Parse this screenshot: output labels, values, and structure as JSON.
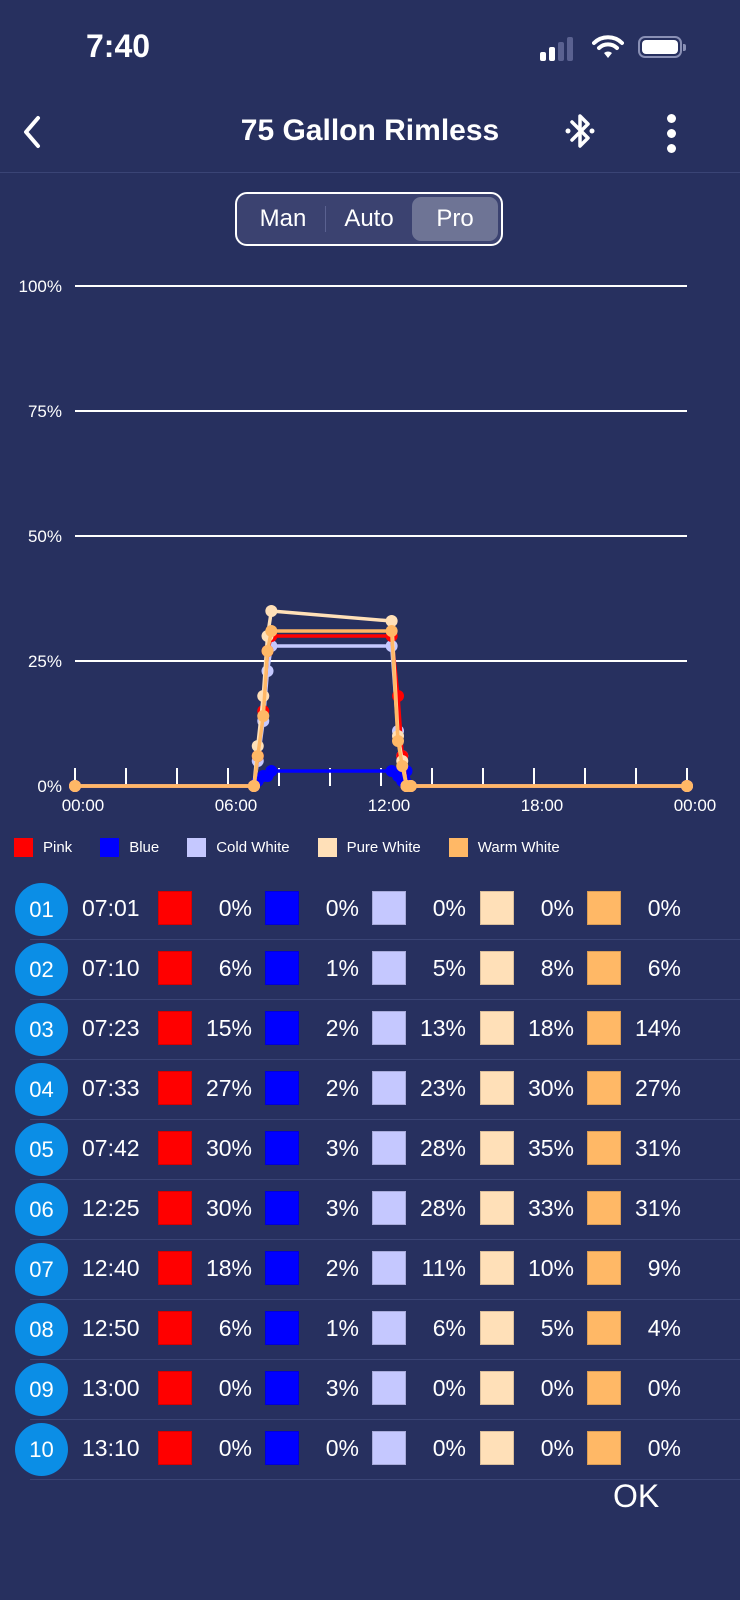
{
  "status_bar": {
    "time": "7:40"
  },
  "header": {
    "title": "75 Gallon Rimless",
    "back_icon": "chevron-left-icon",
    "bluetooth_icon": "bluetooth-icon",
    "menu_icon": "more-vertical-icon"
  },
  "mode_tabs": [
    {
      "label": "Man",
      "active": false
    },
    {
      "label": "Auto",
      "active": false
    },
    {
      "label": "Pro",
      "active": true
    }
  ],
  "channels": [
    {
      "name": "Pink",
      "color": "#ff0000"
    },
    {
      "name": "Blue",
      "color": "#0000ff"
    },
    {
      "name": "Cold White",
      "color": "#c5c8ff"
    },
    {
      "name": "Pure White",
      "color": "#ffe0b8"
    },
    {
      "name": "Warm White",
      "color": "#ffb866"
    }
  ],
  "schedule": [
    {
      "id": "01",
      "time": "07:01",
      "values": [
        "0%",
        "0%",
        "0%",
        "0%",
        "0%"
      ]
    },
    {
      "id": "02",
      "time": "07:10",
      "values": [
        "6%",
        "1%",
        "5%",
        "8%",
        "6%"
      ]
    },
    {
      "id": "03",
      "time": "07:23",
      "values": [
        "15%",
        "2%",
        "13%",
        "18%",
        "14%"
      ]
    },
    {
      "id": "04",
      "time": "07:33",
      "values": [
        "27%",
        "2%",
        "23%",
        "30%",
        "27%"
      ]
    },
    {
      "id": "05",
      "time": "07:42",
      "values": [
        "30%",
        "3%",
        "28%",
        "35%",
        "31%"
      ]
    },
    {
      "id": "06",
      "time": "12:25",
      "values": [
        "30%",
        "3%",
        "28%",
        "33%",
        "31%"
      ]
    },
    {
      "id": "07",
      "time": "12:40",
      "values": [
        "18%",
        "2%",
        "11%",
        "10%",
        "9%"
      ]
    },
    {
      "id": "08",
      "time": "12:50",
      "values": [
        "6%",
        "1%",
        "6%",
        "5%",
        "4%"
      ]
    },
    {
      "id": "09",
      "time": "13:00",
      "values": [
        "0%",
        "3%",
        "0%",
        "0%",
        "0%"
      ]
    },
    {
      "id": "10",
      "time": "13:10",
      "values": [
        "0%",
        "0%",
        "0%",
        "0%",
        "0%"
      ]
    }
  ],
  "chart_data": {
    "type": "line",
    "title": "",
    "xlabel": "",
    "ylabel": "",
    "x_ticks": [
      "00:00",
      "06:00",
      "12:00",
      "18:00",
      "00:00"
    ],
    "y_ticks": [
      "0%",
      "25%",
      "50%",
      "75%",
      "100%"
    ],
    "ylim": [
      0,
      100
    ],
    "xlim_hours": [
      0,
      24
    ],
    "grid": true,
    "legend": "bottom",
    "x_hours": [
      0,
      7.017,
      7.167,
      7.383,
      7.55,
      7.7,
      12.417,
      12.667,
      12.833,
      13.0,
      13.167,
      24
    ],
    "series": [
      {
        "name": "Pink",
        "values": [
          0,
          0,
          6,
          15,
          27,
          30,
          30,
          18,
          6,
          0,
          0,
          0
        ]
      },
      {
        "name": "Blue",
        "values": [
          0,
          0,
          1,
          2,
          2,
          3,
          3,
          2,
          1,
          3,
          0,
          0
        ]
      },
      {
        "name": "Cold White",
        "values": [
          0,
          0,
          5,
          13,
          23,
          28,
          28,
          11,
          6,
          0,
          0,
          0
        ]
      },
      {
        "name": "Pure White",
        "values": [
          0,
          0,
          8,
          18,
          30,
          35,
          33,
          10,
          5,
          0,
          0,
          0
        ]
      },
      {
        "name": "Warm White",
        "values": [
          0,
          0,
          6,
          14,
          27,
          31,
          31,
          9,
          4,
          0,
          0,
          0
        ]
      }
    ]
  },
  "footer": {
    "ok_label": "OK"
  }
}
